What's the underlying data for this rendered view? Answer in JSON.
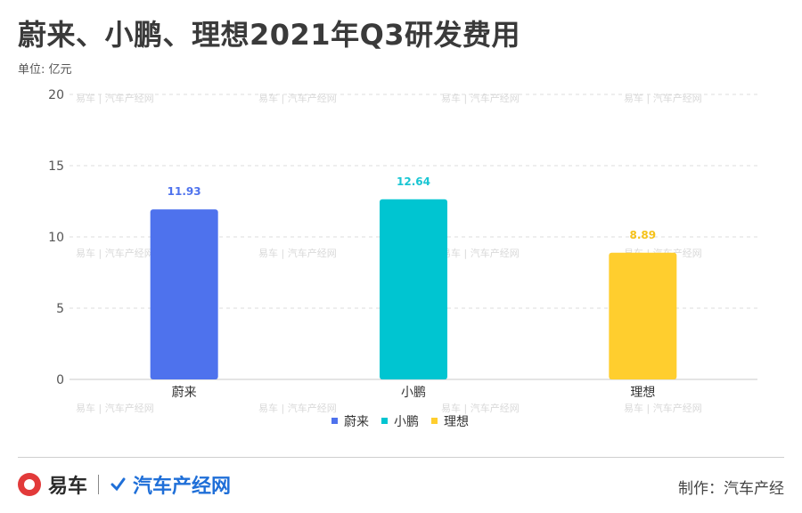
{
  "title": "蔚来、小鹏、理想2021年Q3研发费用",
  "unit_label": "单位: 亿元",
  "chart_data": {
    "type": "bar",
    "title": "蔚来、小鹏、理想2021年Q3研发费用",
    "ylabel": "亿元",
    "xlabel": "",
    "categories": [
      "蔚来",
      "小鹏",
      "理想"
    ],
    "values": [
      11.93,
      12.64,
      8.89
    ],
    "colors": [
      "#4e72ed",
      "#00c5d1",
      "#ffce2e"
    ],
    "label_colors": [
      "#4e72ed",
      "#19c6d3",
      "#f5c21a"
    ],
    "ylim": [
      0,
      20
    ],
    "yticks": [
      0,
      5,
      10,
      15,
      20
    ],
    "grid": true,
    "legend": [
      "蔚来",
      "小鹏",
      "理想"
    ],
    "legend_position": "bottom"
  },
  "watermark_text": "易车 | 汽车产经网",
  "footer": {
    "logo_yiche": "易车",
    "logo_qcj": "汽车产经网",
    "producer": "制作：汽车产经"
  }
}
